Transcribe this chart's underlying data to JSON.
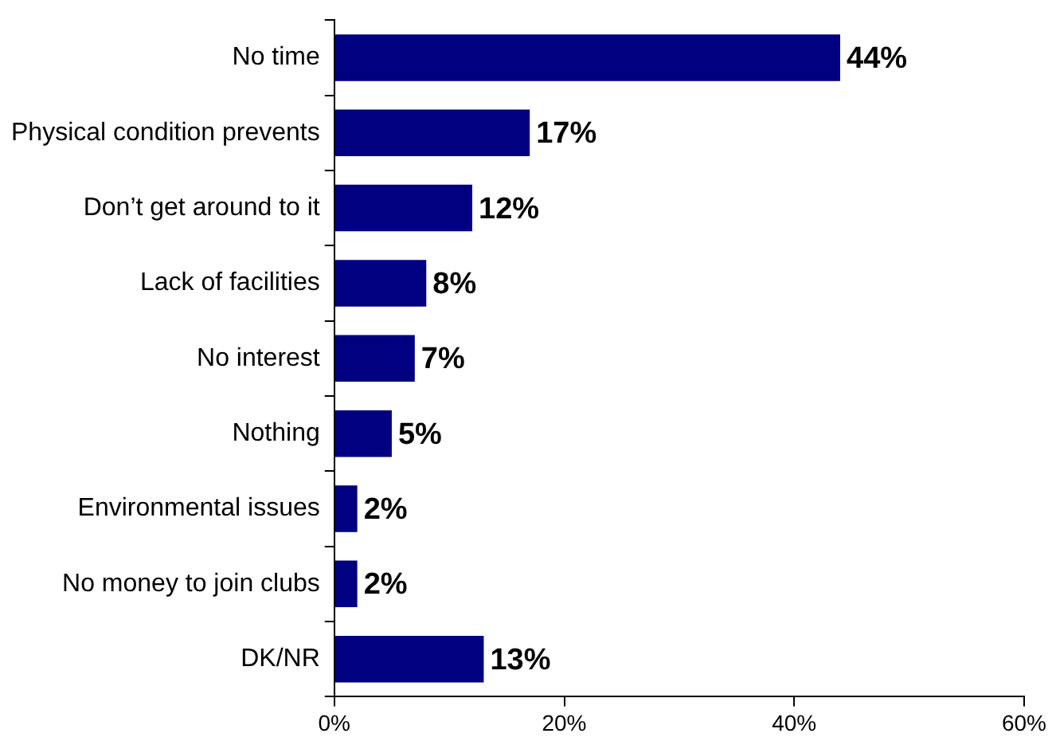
{
  "chart_data": {
    "type": "bar",
    "orientation": "horizontal",
    "categories": [
      "No time",
      "Physical condition prevents",
      "Don’t get around to it",
      "Lack of facilities",
      "No interest",
      "Nothing",
      "Environmental issues",
      "No money to join clubs",
      "DK/NR"
    ],
    "values": [
      44,
      17,
      12,
      8,
      7,
      5,
      2,
      2,
      13
    ],
    "value_labels": [
      "44%",
      "17%",
      "12%",
      "8%",
      "7%",
      "5%",
      "2%",
      "2%",
      "13%"
    ],
    "color": "#000080",
    "xlim": [
      0,
      60
    ],
    "xticks": [
      {
        "value": 0,
        "label": "0%"
      },
      {
        "value": 20,
        "label": "20%"
      },
      {
        "value": 40,
        "label": "40%"
      },
      {
        "value": 60,
        "label": "60%"
      }
    ],
    "grid": false,
    "legend": false
  }
}
